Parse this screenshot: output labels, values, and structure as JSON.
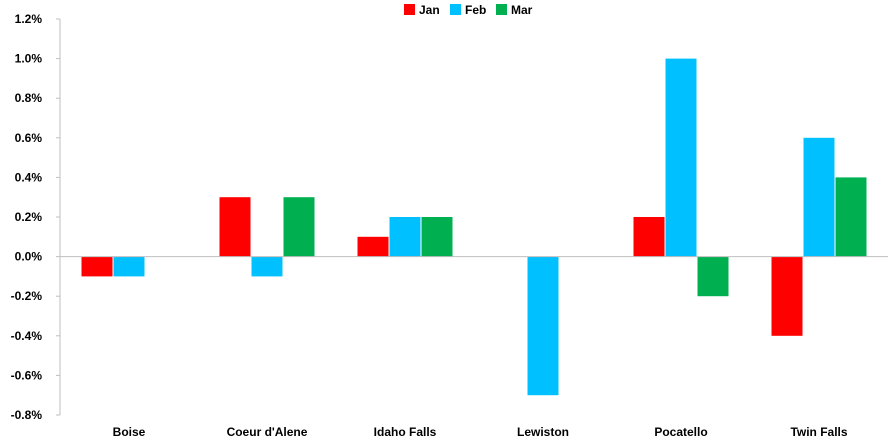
{
  "chart_data": {
    "type": "bar",
    "categories": [
      "Boise",
      "Coeur d'Alene",
      "Idaho Falls",
      "Lewiston",
      "Pocatello",
      "Twin Falls"
    ],
    "series": [
      {
        "name": "Jan",
        "color": "#ff0000",
        "values": [
          -0.1,
          0.3,
          0.1,
          null,
          0.2,
          -0.4
        ]
      },
      {
        "name": "Feb",
        "color": "#00c0ff",
        "values": [
          -0.1,
          -0.1,
          0.2,
          -0.7,
          1.0,
          0.6
        ]
      },
      {
        "name": "Mar",
        "color": "#00b050",
        "values": [
          null,
          0.3,
          0.2,
          null,
          -0.2,
          0.4
        ]
      }
    ],
    "ylim": [
      -0.8,
      1.2
    ],
    "yticks": [
      -0.8,
      -0.6,
      -0.4,
      -0.2,
      0.0,
      0.2,
      0.4,
      0.6,
      0.8,
      1.0,
      1.2
    ],
    "ytick_labels": [
      "-0.8%",
      "-0.6%",
      "-0.4%",
      "-0.2%",
      "0.0%",
      "0.2%",
      "0.4%",
      "0.6%",
      "0.8%",
      "1.0%",
      "1.2%"
    ],
    "legend_position": "top-center",
    "grid": false,
    "title": "",
    "xlabel": "",
    "ylabel": ""
  }
}
